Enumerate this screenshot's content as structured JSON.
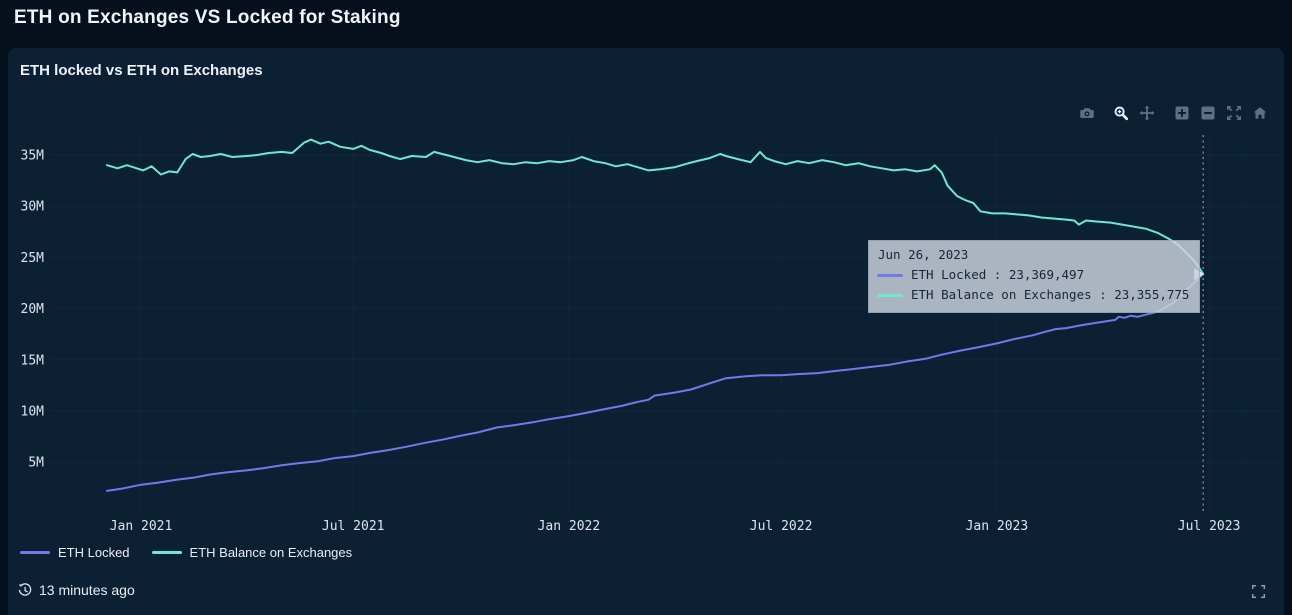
{
  "page": {
    "title": "ETH on Exchanges VS Locked for Staking"
  },
  "card": {
    "title": "ETH locked vs ETH on Exchanges"
  },
  "modebar": {
    "buttons": [
      "download-camera",
      "zoom-magnifier",
      "pan-arrows",
      "zoom-in",
      "zoom-out",
      "autoscale",
      "reset-home"
    ],
    "active": "zoom-magnifier"
  },
  "colors": {
    "eth_locked": "#7478e9",
    "eth_exchanges": "#6fe8d2",
    "page_bg": "#06101d",
    "card_bg": "#0c2034",
    "grid": "#16314a",
    "crosshair": "#8fa0b4",
    "tick_text": "#dce4ee",
    "tooltip_bg": "#cbd2dd",
    "tooltip_text": "#16263a",
    "modebar_icon": "#5d7089",
    "modebar_icon_active": "#e9f0f7"
  },
  "chart_data": {
    "type": "line",
    "title": "ETH locked vs ETH on Exchanges",
    "xlabel": "",
    "ylabel": "",
    "units": "millions of ETH",
    "x_axis_type": "date",
    "grid": true,
    "legend_position": "bottom",
    "ylim": [
      0,
      37
    ],
    "y_ticks": [
      {
        "value": 5,
        "label": "5M"
      },
      {
        "value": 10,
        "label": "10M"
      },
      {
        "value": 15,
        "label": "15M"
      },
      {
        "value": 20,
        "label": "20M"
      },
      {
        "value": 25,
        "label": "25M"
      },
      {
        "value": 30,
        "label": "30M"
      },
      {
        "value": 35,
        "label": "35M"
      }
    ],
    "x_ticks": [
      {
        "date": "2021-01-01",
        "label": "Jan 2021"
      },
      {
        "date": "2021-07-01",
        "label": "Jul 2021"
      },
      {
        "date": "2022-01-01",
        "label": "Jan 2022"
      },
      {
        "date": "2022-07-01",
        "label": "Jul 2022"
      },
      {
        "date": "2023-01-01",
        "label": "Jan 2023"
      },
      {
        "date": "2023-07-01",
        "label": "Jul 2023"
      },
      {
        "date": "2023-08-01",
        "label": ""
      }
    ],
    "hover": {
      "title": "Jun 26, 2023",
      "date": "2023-06-26",
      "rows": [
        {
          "series": "ETH Locked",
          "color_key": "eth_locked",
          "value": 23369497,
          "text": "ETH Locked : 23,369,497"
        },
        {
          "series": "ETH Balance on Exchanges",
          "color_key": "eth_exchanges",
          "value": 23355775,
          "text": "ETH Balance on Exchanges : 23,355,775"
        }
      ]
    },
    "series": [
      {
        "id": "eth_exchanges",
        "name": "ETH Balance on Exchanges",
        "color_key": "eth_exchanges",
        "points": [
          [
            "2020-12-03",
            34.0
          ],
          [
            "2020-12-12",
            33.7
          ],
          [
            "2020-12-20",
            34.0
          ],
          [
            "2021-01-03",
            33.5
          ],
          [
            "2021-01-10",
            33.9
          ],
          [
            "2021-01-18",
            33.1
          ],
          [
            "2021-01-25",
            33.4
          ],
          [
            "2021-02-01",
            33.3
          ],
          [
            "2021-02-08",
            34.6
          ],
          [
            "2021-02-14",
            35.1
          ],
          [
            "2021-02-21",
            34.8
          ],
          [
            "2021-03-01",
            34.9
          ],
          [
            "2021-03-10",
            35.1
          ],
          [
            "2021-03-20",
            34.8
          ],
          [
            "2021-04-01",
            34.9
          ],
          [
            "2021-04-10",
            35.0
          ],
          [
            "2021-04-20",
            35.2
          ],
          [
            "2021-05-01",
            35.3
          ],
          [
            "2021-05-10",
            35.2
          ],
          [
            "2021-05-20",
            36.2
          ],
          [
            "2021-05-26",
            36.5
          ],
          [
            "2021-06-03",
            36.1
          ],
          [
            "2021-06-10",
            36.3
          ],
          [
            "2021-06-20",
            35.8
          ],
          [
            "2021-07-01",
            35.6
          ],
          [
            "2021-07-08",
            35.9
          ],
          [
            "2021-07-15",
            35.5
          ],
          [
            "2021-07-25",
            35.2
          ],
          [
            "2021-08-01",
            34.9
          ],
          [
            "2021-08-10",
            34.6
          ],
          [
            "2021-08-20",
            34.9
          ],
          [
            "2021-09-01",
            34.8
          ],
          [
            "2021-09-08",
            35.3
          ],
          [
            "2021-09-15",
            35.1
          ],
          [
            "2021-09-25",
            34.8
          ],
          [
            "2021-10-05",
            34.5
          ],
          [
            "2021-10-15",
            34.3
          ],
          [
            "2021-10-25",
            34.5
          ],
          [
            "2021-11-05",
            34.2
          ],
          [
            "2021-11-15",
            34.1
          ],
          [
            "2021-11-25",
            34.3
          ],
          [
            "2021-12-05",
            34.2
          ],
          [
            "2021-12-15",
            34.4
          ],
          [
            "2021-12-25",
            34.3
          ],
          [
            "2022-01-05",
            34.5
          ],
          [
            "2022-01-12",
            34.8
          ],
          [
            "2022-01-22",
            34.4
          ],
          [
            "2022-02-01",
            34.2
          ],
          [
            "2022-02-10",
            33.9
          ],
          [
            "2022-02-20",
            34.1
          ],
          [
            "2022-03-01",
            33.8
          ],
          [
            "2022-03-10",
            33.5
          ],
          [
            "2022-03-20",
            33.6
          ],
          [
            "2022-04-01",
            33.8
          ],
          [
            "2022-04-10",
            34.1
          ],
          [
            "2022-04-20",
            34.4
          ],
          [
            "2022-05-01",
            34.7
          ],
          [
            "2022-05-10",
            35.1
          ],
          [
            "2022-05-15",
            34.9
          ],
          [
            "2022-05-25",
            34.6
          ],
          [
            "2022-06-05",
            34.3
          ],
          [
            "2022-06-13",
            35.3
          ],
          [
            "2022-06-18",
            34.7
          ],
          [
            "2022-06-25",
            34.4
          ],
          [
            "2022-07-05",
            34.1
          ],
          [
            "2022-07-15",
            34.4
          ],
          [
            "2022-07-25",
            34.2
          ],
          [
            "2022-08-05",
            34.5
          ],
          [
            "2022-08-15",
            34.3
          ],
          [
            "2022-08-25",
            34.0
          ],
          [
            "2022-09-05",
            34.2
          ],
          [
            "2022-09-15",
            33.9
          ],
          [
            "2022-09-25",
            33.7
          ],
          [
            "2022-10-05",
            33.5
          ],
          [
            "2022-10-15",
            33.6
          ],
          [
            "2022-10-25",
            33.4
          ],
          [
            "2022-11-05",
            33.6
          ],
          [
            "2022-11-09",
            34.0
          ],
          [
            "2022-11-15",
            33.3
          ],
          [
            "2022-11-20",
            32.0
          ],
          [
            "2022-11-28",
            31.0
          ],
          [
            "2022-12-05",
            30.6
          ],
          [
            "2022-12-12",
            30.3
          ],
          [
            "2022-12-18",
            29.5
          ],
          [
            "2022-12-28",
            29.3
          ],
          [
            "2023-01-08",
            29.3
          ],
          [
            "2023-01-18",
            29.2
          ],
          [
            "2023-01-28",
            29.1
          ],
          [
            "2023-02-08",
            28.9
          ],
          [
            "2023-02-18",
            28.8
          ],
          [
            "2023-02-28",
            28.7
          ],
          [
            "2023-03-08",
            28.6
          ],
          [
            "2023-03-12",
            28.2
          ],
          [
            "2023-03-18",
            28.6
          ],
          [
            "2023-03-28",
            28.5
          ],
          [
            "2023-04-08",
            28.4
          ],
          [
            "2023-04-18",
            28.2
          ],
          [
            "2023-04-28",
            28.0
          ],
          [
            "2023-05-08",
            27.8
          ],
          [
            "2023-05-18",
            27.4
          ],
          [
            "2023-05-28",
            26.8
          ],
          [
            "2023-06-05",
            26.2
          ],
          [
            "2023-06-12",
            25.4
          ],
          [
            "2023-06-18",
            24.7
          ],
          [
            "2023-06-22",
            24.1
          ],
          [
            "2023-06-26",
            23.355775
          ]
        ]
      },
      {
        "id": "eth_locked",
        "name": "ETH Locked",
        "color_key": "eth_locked",
        "points": [
          [
            "2020-12-03",
            2.2
          ],
          [
            "2020-12-15",
            2.4
          ],
          [
            "2021-01-01",
            2.8
          ],
          [
            "2021-01-15",
            3.0
          ],
          [
            "2021-02-01",
            3.3
          ],
          [
            "2021-02-15",
            3.5
          ],
          [
            "2021-03-01",
            3.8
          ],
          [
            "2021-03-15",
            4.0
          ],
          [
            "2021-04-01",
            4.2
          ],
          [
            "2021-04-15",
            4.4
          ],
          [
            "2021-05-01",
            4.7
          ],
          [
            "2021-05-15",
            4.9
          ],
          [
            "2021-06-01",
            5.1
          ],
          [
            "2021-06-15",
            5.4
          ],
          [
            "2021-07-01",
            5.6
          ],
          [
            "2021-07-15",
            5.9
          ],
          [
            "2021-08-01",
            6.2
          ],
          [
            "2021-08-15",
            6.5
          ],
          [
            "2021-09-01",
            6.9
          ],
          [
            "2021-09-15",
            7.2
          ],
          [
            "2021-10-01",
            7.6
          ],
          [
            "2021-10-15",
            7.9
          ],
          [
            "2021-11-01",
            8.4
          ],
          [
            "2021-11-15",
            8.6
          ],
          [
            "2021-12-01",
            8.9
          ],
          [
            "2021-12-15",
            9.2
          ],
          [
            "2022-01-01",
            9.5
          ],
          [
            "2022-01-15",
            9.8
          ],
          [
            "2022-02-01",
            10.2
          ],
          [
            "2022-02-15",
            10.5
          ],
          [
            "2022-03-01",
            10.9
          ],
          [
            "2022-03-10",
            11.1
          ],
          [
            "2022-03-15",
            11.5
          ],
          [
            "2022-04-01",
            11.8
          ],
          [
            "2022-04-15",
            12.1
          ],
          [
            "2022-05-01",
            12.7
          ],
          [
            "2022-05-15",
            13.2
          ],
          [
            "2022-06-01",
            13.4
          ],
          [
            "2022-06-15",
            13.5
          ],
          [
            "2022-07-01",
            13.5
          ],
          [
            "2022-07-15",
            13.6
          ],
          [
            "2022-08-01",
            13.7
          ],
          [
            "2022-08-15",
            13.9
          ],
          [
            "2022-09-01",
            14.1
          ],
          [
            "2022-09-15",
            14.3
          ],
          [
            "2022-10-01",
            14.5
          ],
          [
            "2022-10-15",
            14.8
          ],
          [
            "2022-11-01",
            15.1
          ],
          [
            "2022-11-15",
            15.5
          ],
          [
            "2022-12-01",
            15.9
          ],
          [
            "2022-12-15",
            16.2
          ],
          [
            "2023-01-01",
            16.6
          ],
          [
            "2023-01-15",
            17.0
          ],
          [
            "2023-02-01",
            17.4
          ],
          [
            "2023-02-10",
            17.7
          ],
          [
            "2023-02-20",
            18.0
          ],
          [
            "2023-03-01",
            18.1
          ],
          [
            "2023-03-15",
            18.4
          ],
          [
            "2023-04-01",
            18.7
          ],
          [
            "2023-04-12",
            18.9
          ],
          [
            "2023-04-15",
            19.2
          ],
          [
            "2023-04-20",
            19.1
          ],
          [
            "2023-04-25",
            19.3
          ],
          [
            "2023-05-01",
            19.2
          ],
          [
            "2023-05-08",
            19.4
          ],
          [
            "2023-05-15",
            19.6
          ],
          [
            "2023-05-20",
            19.8
          ],
          [
            "2023-06-01",
            20.6
          ],
          [
            "2023-06-10",
            21.6
          ],
          [
            "2023-06-18",
            22.5
          ],
          [
            "2023-06-26",
            23.369497
          ]
        ]
      }
    ]
  },
  "footer": {
    "updated": "13 minutes ago"
  }
}
